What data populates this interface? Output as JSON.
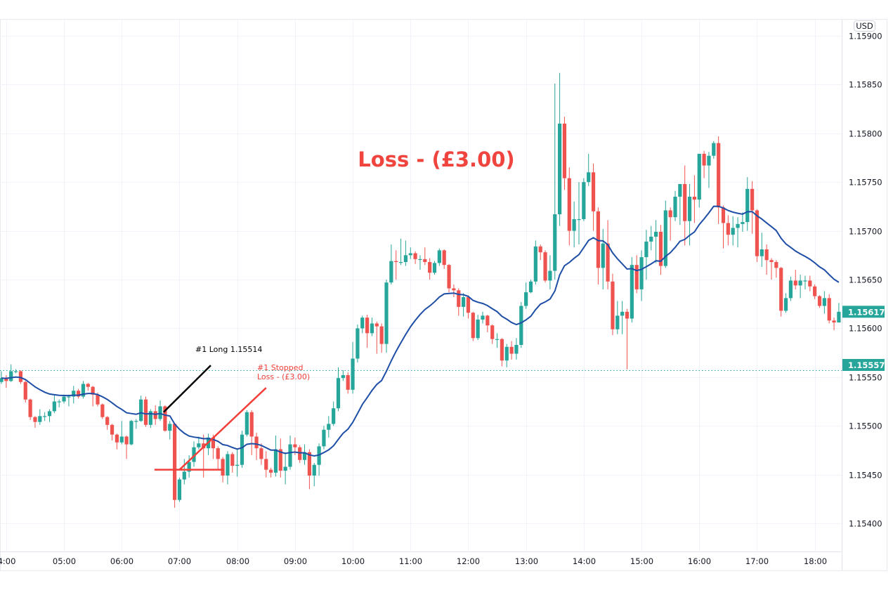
{
  "chart_data": {
    "type": "candlestick",
    "title": "",
    "interval_minutes": 5,
    "first_candle_time": "03:55",
    "price_encoding": {
      "offset": 1.15,
      "scale": 1e-05,
      "note": "price = offset + n * scale"
    },
    "first_open": 545,
    "close": [
      549,
      546,
      556,
      556,
      545,
      527,
      509,
      504,
      510,
      510,
      515,
      525,
      525,
      530,
      530,
      536,
      530,
      543,
      540,
      532,
      522,
      509,
      501,
      491,
      483,
      489,
      481,
      505,
      505,
      527,
      501,
      515,
      507,
      520,
      495,
      502,
      424,
      445,
      453,
      463,
      478,
      482,
      477,
      488,
      477,
      466,
      449,
      471,
      459,
      460,
      491,
      514,
      489,
      477,
      466,
      455,
      452,
      476,
      454,
      458,
      481,
      478,
      465,
      473,
      449,
      460,
      479,
      496,
      502,
      518,
      549,
      552,
      537,
      569,
      600,
      611,
      595,
      605,
      602,
      584,
      647,
      669,
      668,
      668,
      675,
      677,
      671,
      671,
      668,
      657,
      667,
      680,
      665,
      641,
      639,
      622,
      632,
      616,
      590,
      609,
      613,
      603,
      589,
      589,
      567,
      581,
      574,
      583,
      623,
      637,
      648,
      684,
      678,
      649,
      659,
      717,
      810,
      754,
      700,
      712,
      712,
      750,
      760,
      720,
      662,
      687,
      648,
      599,
      613,
      617,
      610,
      665,
      640,
      673,
      689,
      694,
      699,
      664,
      721,
      714,
      735,
      748,
      710,
      735,
      732,
      779,
      767,
      777,
      790,
      724,
      708,
      696,
      703,
      707,
      709,
      743,
      721,
      674,
      681,
      670,
      668,
      662,
      618,
      631,
      649,
      644,
      649,
      649,
      643,
      633,
      623,
      631,
      608,
      606,
      617
    ],
    "high": [
      556,
      552,
      563,
      558,
      557,
      546,
      528,
      510,
      517,
      514,
      517,
      532,
      527,
      532,
      532,
      541,
      538,
      546,
      544,
      541,
      534,
      523,
      510,
      502,
      492,
      505,
      490,
      506,
      507,
      531,
      530,
      517,
      521,
      526,
      521,
      505,
      503,
      447,
      466,
      470,
      484,
      489,
      491,
      492,
      491,
      479,
      468,
      474,
      473,
      476,
      495,
      516,
      516,
      493,
      482,
      474,
      457,
      490,
      487,
      473,
      490,
      488,
      480,
      481,
      476,
      462,
      482,
      500,
      510,
      525,
      560,
      557,
      555,
      586,
      604,
      613,
      614,
      611,
      607,
      605,
      650,
      686,
      680,
      692,
      690,
      683,
      679,
      675,
      683,
      672,
      669,
      682,
      681,
      666,
      645,
      641,
      636,
      634,
      617,
      614,
      617,
      614,
      604,
      595,
      590,
      584,
      587,
      590,
      627,
      647,
      650,
      690,
      686,
      680,
      675,
      851,
      862,
      817,
      765,
      730,
      750,
      754,
      779,
      769,
      724,
      702,
      711,
      656,
      628,
      628,
      620,
      673,
      675,
      680,
      701,
      705,
      711,
      706,
      731,
      724,
      741,
      748,
      767,
      748,
      757,
      779,
      782,
      781,
      792,
      797,
      726,
      716,
      715,
      714,
      719,
      755,
      751,
      722,
      698,
      686,
      672,
      670,
      663,
      636,
      653,
      660,
      655,
      654,
      654,
      645,
      634,
      638,
      635,
      611,
      626
    ],
    "low": [
      543,
      539,
      545,
      554,
      543,
      524,
      506,
      498,
      501,
      505,
      504,
      513,
      519,
      523,
      520,
      523,
      528,
      528,
      536,
      520,
      520,
      507,
      496,
      485,
      476,
      481,
      466,
      480,
      497,
      504,
      499,
      498,
      501,
      505,
      494,
      486,
      416,
      422,
      440,
      447,
      458,
      476,
      447,
      470,
      466,
      455,
      442,
      440,
      452,
      448,
      457,
      489,
      470,
      465,
      460,
      447,
      447,
      448,
      447,
      440,
      455,
      470,
      462,
      460,
      435,
      438,
      449,
      476,
      488,
      500,
      515,
      546,
      533,
      533,
      565,
      595,
      580,
      592,
      574,
      575,
      575,
      645,
      650,
      665,
      664,
      671,
      666,
      660,
      665,
      650,
      655,
      664,
      661,
      637,
      632,
      613,
      612,
      610,
      587,
      588,
      605,
      596,
      584,
      580,
      561,
      560,
      568,
      568,
      580,
      620,
      636,
      645,
      670,
      647,
      640,
      650,
      705,
      742,
      685,
      683,
      686,
      710,
      746,
      700,
      645,
      640,
      640,
      593,
      594,
      594,
      558,
      606,
      636,
      628,
      650,
      680,
      667,
      655,
      662,
      690,
      710,
      706,
      685,
      685,
      708,
      724,
      754,
      744,
      774,
      707,
      682,
      685,
      685,
      683,
      699,
      700,
      697,
      668,
      663,
      655,
      650,
      652,
      612,
      616,
      628,
      640,
      631,
      640,
      638,
      630,
      621,
      615,
      605,
      598,
      606
    ],
    "moving_average": {
      "type": "EMA",
      "period": 20,
      "color": "#1e4ea6"
    },
    "colors": {
      "up": "#26a69a",
      "down": "#ef5350",
      "grid": "#f0f3fa",
      "axis_text": "#131722"
    },
    "x_ticks": [
      "4:00",
      "05:00",
      "06:00",
      "07:00",
      "08:00",
      "09:00",
      "10:00",
      "11:00",
      "12:00",
      "13:00",
      "14:00",
      "15:00",
      "16:00",
      "17:00",
      "18:00"
    ],
    "x_tick_hours": [
      4,
      5,
      6,
      7,
      8,
      9,
      10,
      11,
      12,
      13,
      14,
      15,
      16,
      17,
      18
    ],
    "y_ticks": [
      "1.15900",
      "1.15850",
      "1.15800",
      "1.15750",
      "1.15700",
      "1.15650",
      "1.15600",
      "1.15550",
      "1.15500",
      "1.15450",
      "1.15400"
    ],
    "y_tick_values": [
      1.159,
      1.1585,
      1.158,
      1.1575,
      1.157,
      1.1565,
      1.156,
      1.1555,
      1.155,
      1.1545,
      1.154
    ],
    "ylim": [
      1.154,
      1.159
    ],
    "currency_label": "USD",
    "price_tags": [
      {
        "label": "1.15617",
        "value": 1.15617,
        "color": "#26a69a"
      },
      {
        "label": "1.15557",
        "value": 1.15557,
        "color": "#26a69a"
      }
    ],
    "dotted_line": {
      "value": 1.15557,
      "color": "#26a69a"
    },
    "annotations": {
      "entry_label": "#1 Long 1.15514",
      "entry_price": 1.15514,
      "entry_line": {
        "from": [
          33.7,
          1.15514
        ],
        "to": [
          43.5,
          1.15562
        ],
        "color": "#000000"
      },
      "stop_label_line1": "#1 Stopped",
      "stop_label_line2": "Loss - (£3.00)",
      "stop_color": "#f23f3a",
      "stop_horizontal": {
        "from": [
          31.8,
          1.15455
        ],
        "to": [
          46.2,
          1.15455
        ]
      },
      "stop_diagonal": {
        "from": [
          37,
          1.15455
        ],
        "to": [
          55,
          1.15539
        ]
      }
    },
    "headline": {
      "text": "Loss - (£3.00)",
      "color": "#f0453f"
    }
  }
}
